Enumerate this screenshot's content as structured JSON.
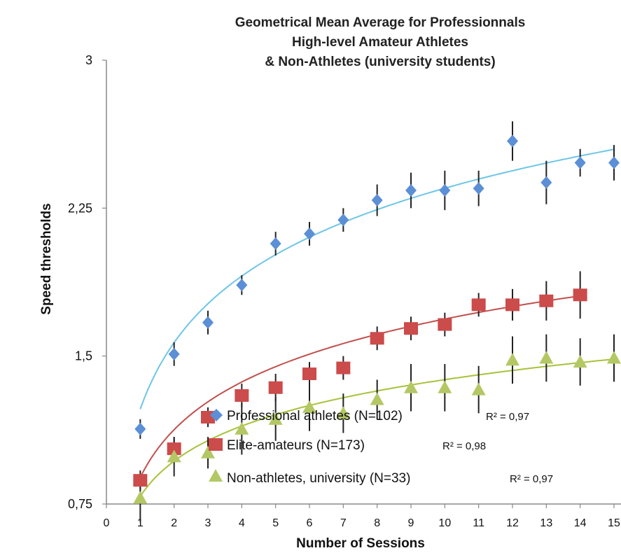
{
  "chart_data": {
    "type": "scatter",
    "title_lines": [
      "Geometrical Mean Average for Professionnals",
      "High-level Amateur Athletes",
      "& Non-Athletes (university students)"
    ],
    "xlabel": "Number of Sessions",
    "ylabel": "Speed thresholds",
    "xlim": [
      0,
      15
    ],
    "ylim": [
      0.75,
      3
    ],
    "x_ticks": [
      "0",
      "1",
      "2",
      "3",
      "4",
      "5",
      "6",
      "7",
      "8",
      "9",
      "10",
      "11",
      "12",
      "13",
      "14",
      "15"
    ],
    "y_ticks": [
      {
        "value": 0.75,
        "label": "0,75"
      },
      {
        "value": 1.5,
        "label": "1,5"
      },
      {
        "value": 2.25,
        "label": "2,25"
      },
      {
        "value": 3,
        "label": "3"
      }
    ],
    "grid": false,
    "legend_position": "bottom-center",
    "series": [
      {
        "name": "Professional athletes (N=102)",
        "r2": "R² = 0,97",
        "marker": "diamond",
        "color": "#5b8fd6",
        "trend_color": "#6ec6e6",
        "x": [
          1,
          2,
          3,
          4,
          5,
          6,
          7,
          8,
          9,
          10,
          11,
          12,
          13,
          14,
          15
        ],
        "y": [
          1.13,
          1.51,
          1.67,
          1.86,
          2.07,
          2.12,
          2.19,
          2.29,
          2.34,
          2.34,
          2.35,
          2.59,
          2.38,
          2.48,
          2.48
        ],
        "err": [
          0.05,
          0.06,
          0.06,
          0.05,
          0.06,
          0.06,
          0.06,
          0.08,
          0.09,
          0.1,
          0.09,
          0.1,
          0.11,
          0.07,
          0.09
        ],
        "trend": {
          "a": 0.4863,
          "b": 1.2312
        }
      },
      {
        "name": "Elite-amateurs (N=173)",
        "r2": "R² = 0,98",
        "marker": "square",
        "color": "#cc4b4b",
        "trend_color": "#c0504d",
        "x": [
          1,
          2,
          3,
          4,
          5,
          6,
          7,
          8,
          9,
          10,
          11,
          12,
          13,
          14
        ],
        "y": [
          0.87,
          1.03,
          1.19,
          1.3,
          1.34,
          1.41,
          1.44,
          1.59,
          1.64,
          1.66,
          1.76,
          1.76,
          1.78,
          1.81
        ],
        "err": [
          0.05,
          0.06,
          0.05,
          0.06,
          0.07,
          0.06,
          0.06,
          0.06,
          0.06,
          0.06,
          0.06,
          0.08,
          0.1,
          0.12
        ],
        "trend": {
          "a": 0.3487,
          "b": 0.885
        }
      },
      {
        "name": "Non-athletes, university (N=33)",
        "r2": "R² = 0,97",
        "marker": "triangle",
        "color": "#b3c864",
        "trend_color": "#a8c23a",
        "x": [
          1,
          2,
          3,
          4,
          5,
          6,
          7,
          8,
          9,
          10,
          11,
          12,
          13,
          14,
          15
        ],
        "y": [
          0.78,
          0.99,
          1.01,
          1.13,
          1.18,
          1.24,
          1.21,
          1.28,
          1.34,
          1.34,
          1.33,
          1.48,
          1.49,
          1.47,
          1.49
        ],
        "err": [
          0.12,
          0.1,
          0.08,
          0.13,
          0.11,
          0.12,
          0.1,
          0.1,
          0.12,
          0.12,
          0.12,
          0.12,
          0.12,
          0.12,
          0.12
        ],
        "trend": {
          "a": 0.2566,
          "b": 0.7896
        }
      }
    ]
  }
}
